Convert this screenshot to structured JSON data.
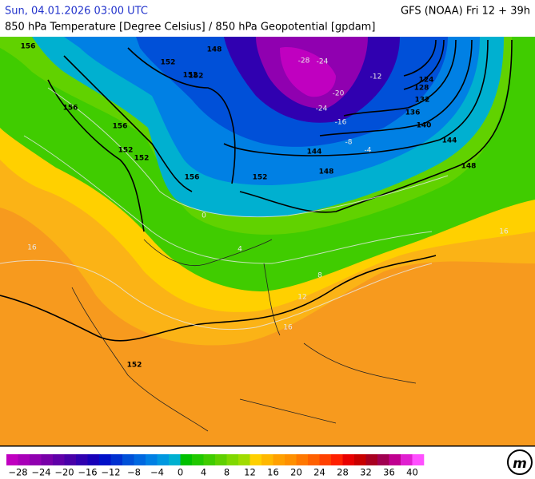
{
  "header": {
    "date": "Sun, 04.01.2026 03:00 UTC",
    "model": "GFS (NOAA) Fri 12 + 39h",
    "subtitle": "850 hPa Temperature [Degree Celsius] / 850 hPa Geopotential [gpdam]"
  },
  "map": {
    "contour_labels": [
      "156",
      "152",
      "156",
      "156",
      "152",
      "152",
      "156",
      "148",
      "152",
      "152",
      "144",
      "148",
      "140",
      "144",
      "136",
      "132",
      "128",
      "124",
      "148",
      "152",
      "152"
    ],
    "isotherm_labels": [
      "-28",
      "-24",
      "-24",
      "-20",
      "-16",
      "-12",
      "-8",
      "-4",
      "0",
      "4",
      "8",
      "12",
      "16",
      "16",
      "16"
    ]
  },
  "legend": {
    "labels": [
      "−28",
      "−24",
      "−20",
      "−16",
      "−12",
      "−8",
      "−4",
      "0",
      "4",
      "8",
      "12",
      "16",
      "20",
      "24",
      "28",
      "32",
      "36",
      "40"
    ],
    "colors": [
      "#c000c0",
      "#a800b8",
      "#9000b0",
      "#7800a8",
      "#6000a8",
      "#4800a8",
      "#3000b0",
      "#1800b8",
      "#0010c8",
      "#0030d0",
      "#0050d8",
      "#0068e0",
      "#0080e4",
      "#0098e0",
      "#00b0d0",
      "#00c000",
      "#20c800",
      "#40cc00",
      "#60d000",
      "#80d800",
      "#a0dc00",
      "#ffd000",
      "#ffb800",
      "#ffa000",
      "#ff9000",
      "#ff7800",
      "#ff6000",
      "#ff4000",
      "#ff2000",
      "#e80000",
      "#c80000",
      "#a80020",
      "#a00050",
      "#c00090",
      "#e020d0",
      "#ff50ff"
    ]
  }
}
